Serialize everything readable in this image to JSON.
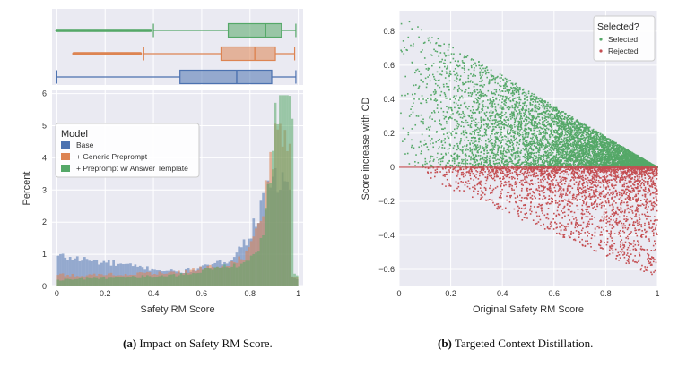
{
  "captions": {
    "a": {
      "tag": "(a)",
      "text": "Impact on Safety RM Score."
    },
    "b": {
      "tag": "(b)",
      "text": "Targeted Context Distillation."
    }
  },
  "colors": {
    "base": "#4c72b0",
    "generic": "#dd8452",
    "answer": "#55a868",
    "selected": "#55a868",
    "rejected": "#c44e52",
    "panel_bg": "#eaeaf2",
    "grid": "#ffffff"
  },
  "chart_data": [
    {
      "type": "box",
      "panel": "a-top",
      "xlim": [
        -0.02,
        1.02
      ],
      "series": [
        {
          "name": "+ Preprompt w/ Answer Template",
          "color_key": "answer",
          "whisker_low": 0.4,
          "q1": 0.71,
          "median": 0.865,
          "q3": 0.93,
          "whisker_high": 0.99,
          "outliers_from": 0.0,
          "outliers_to": 0.39
        },
        {
          "name": "+ Generic Preprompt",
          "color_key": "generic",
          "whisker_low": 0.36,
          "q1": 0.68,
          "median": 0.82,
          "q3": 0.905,
          "whisker_high": 0.985,
          "outliers_from": 0.07,
          "outliers_to": 0.35
        },
        {
          "name": "Base",
          "color_key": "base",
          "whisker_low": 0.0,
          "q1": 0.51,
          "median": 0.745,
          "q3": 0.89,
          "whisker_high": 0.99,
          "outliers_from": null,
          "outliers_to": null
        }
      ]
    },
    {
      "type": "histogram",
      "panel": "a-bottom",
      "xlabel": "Safety RM Score",
      "ylabel": "Percent",
      "xlim": [
        -0.02,
        1.02
      ],
      "ylim": [
        0,
        6.1
      ],
      "xticks": [
        "0",
        "0.2",
        "0.4",
        "0.6",
        "0.8",
        "1"
      ],
      "yticks": [
        "0",
        "1",
        "2",
        "3",
        "4",
        "5",
        "6"
      ],
      "legend": {
        "title": "Model",
        "position": "upper-left"
      },
      "series": [
        {
          "name": "Base",
          "color_key": "base",
          "shape": {
            "start": 0.95,
            "end": 0.44,
            "mode": 0.93,
            "peak": 2.3,
            "spread": 0.09,
            "dropAfter": 0.97
          }
        },
        {
          "name": "+ Generic Preprompt",
          "color_key": "generic",
          "shape": {
            "start": 0.35,
            "end": 0.42,
            "mode": 0.935,
            "peak": 4.0,
            "spread": 0.06,
            "dropAfter": 0.97
          }
        },
        {
          "name": "+ Preprompt w/ Answer Template",
          "color_key": "answer",
          "shape": {
            "start": 0.2,
            "end": 0.35,
            "mode": 0.94,
            "peak": 5.8,
            "spread": 0.045,
            "dropAfter": 0.975
          }
        }
      ]
    },
    {
      "type": "scatter",
      "panel": "b",
      "xlabel": "Original Safety RM Score",
      "ylabel": "Score increase with CD",
      "xlim": [
        0,
        1
      ],
      "ylim": [
        -0.7,
        0.92
      ],
      "xticks": [
        "0",
        "0.2",
        "0.4",
        "0.6",
        "0.8",
        "1"
      ],
      "yticks": [
        "−0.6",
        "−0.4",
        "−0.2",
        "0",
        "0.2",
        "0.4",
        "0.6",
        "0.8"
      ],
      "legend": {
        "title": "Selected?",
        "position": "upper-right",
        "entries": [
          "Selected",
          "Rejected"
        ]
      },
      "point_model": {
        "selected_upper_bound": "0.9*(1-x)",
        "rejected_lower_bound": "-0.65*x",
        "total_points_approx": 9000
      }
    }
  ]
}
